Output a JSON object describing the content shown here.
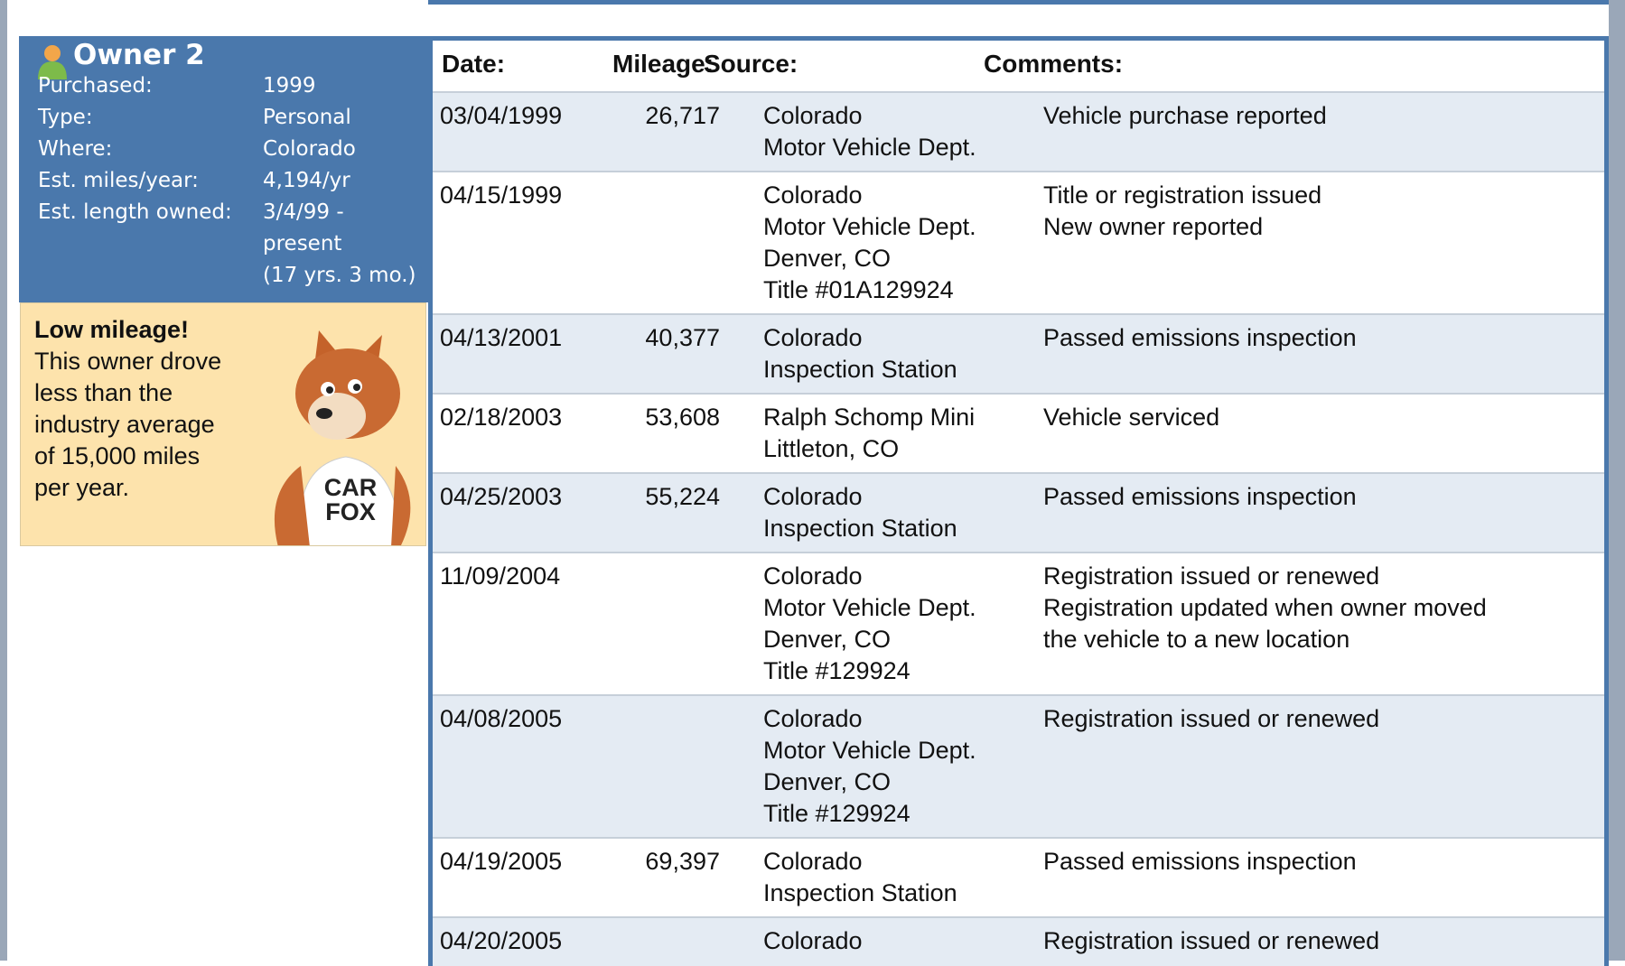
{
  "owner": {
    "title": "Owner 2",
    "details": [
      {
        "label": "Purchased:",
        "value": [
          "1999"
        ]
      },
      {
        "label": "Type:",
        "value": [
          "Personal"
        ]
      },
      {
        "label": "Where:",
        "value": [
          "Colorado"
        ]
      },
      {
        "label": "Est. miles/year:",
        "value": [
          "4,194/yr"
        ]
      },
      {
        "label": "Est. length owned:",
        "value": [
          "3/4/99 -",
          "present",
          "(17 yrs. 3 mo.)"
        ]
      }
    ]
  },
  "note": {
    "heading": "Low mileage!",
    "lines": [
      "This owner drove",
      "less than the",
      "industry average",
      "of 15,000 miles",
      "per year."
    ],
    "shirt": [
      "CAR",
      "FOX"
    ]
  },
  "table": {
    "headers": [
      "Date:",
      "Mileage:",
      "Source:",
      "Comments:"
    ],
    "rows": [
      {
        "date": "03/04/1999",
        "mileage": "26,717",
        "source": [
          "Colorado",
          "Motor Vehicle Dept."
        ],
        "comments": [
          "Vehicle purchase reported"
        ]
      },
      {
        "date": "04/15/1999",
        "source": [
          "Colorado",
          "Motor Vehicle Dept.",
          "Denver, CO",
          "Title #01A129924"
        ],
        "comments": [
          "Title or registration issued",
          "New owner reported"
        ]
      },
      {
        "date": "04/13/2001",
        "mileage": "40,377",
        "source": [
          "Colorado",
          "Inspection Station"
        ],
        "comments": [
          "Passed emissions inspection"
        ]
      },
      {
        "date": "02/18/2003",
        "mileage": "53,608",
        "source": [
          "Ralph Schomp Mini",
          "Littleton, CO"
        ],
        "comments": [
          "Vehicle serviced"
        ]
      },
      {
        "date": "04/25/2003",
        "mileage": "55,224",
        "source": [
          "Colorado",
          "Inspection Station"
        ],
        "comments": [
          "Passed emissions inspection"
        ]
      },
      {
        "date": "11/09/2004",
        "source": [
          "Colorado",
          "Motor Vehicle Dept.",
          "Denver, CO",
          "Title #129924"
        ],
        "comments": [
          "Registration issued or renewed",
          "Registration updated when owner moved",
          "the vehicle to a new location"
        ]
      },
      {
        "date": "04/08/2005",
        "source": [
          "Colorado",
          "Motor Vehicle Dept.",
          "Denver, CO",
          "Title #129924"
        ],
        "comments": [
          "Registration issued or renewed"
        ]
      },
      {
        "date": "04/19/2005",
        "mileage": "69,397",
        "source": [
          "Colorado",
          "Inspection Station"
        ],
        "comments": [
          "Passed emissions inspection"
        ]
      },
      {
        "date": "04/20/2005",
        "source": [
          "Colorado"
        ],
        "comments": [
          "Registration issued or renewed"
        ]
      }
    ]
  }
}
